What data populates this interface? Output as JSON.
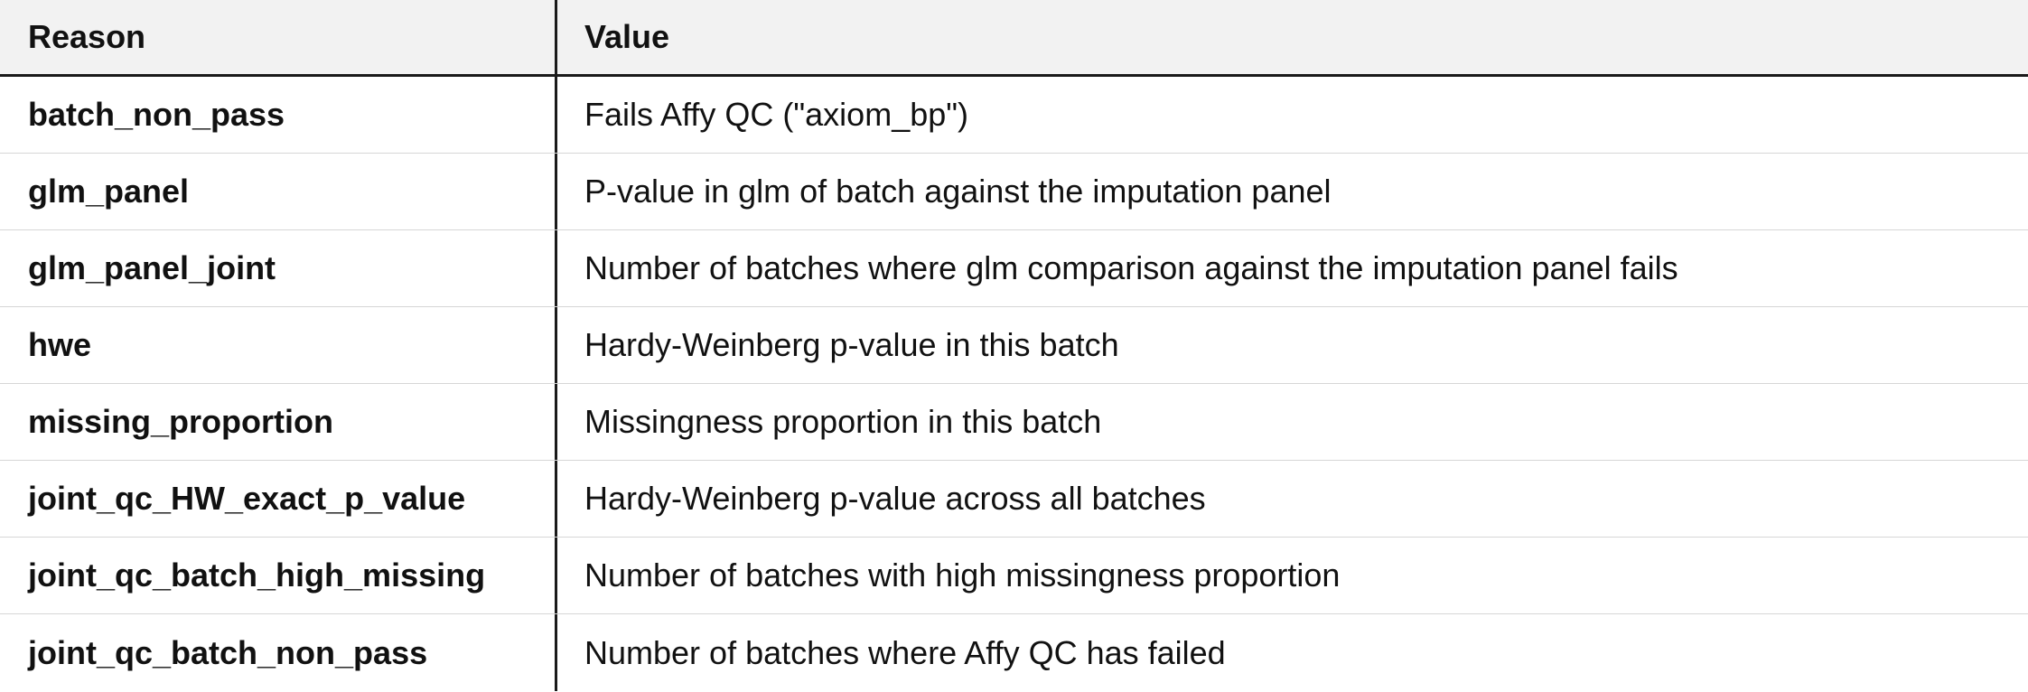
{
  "table": {
    "headers": {
      "reason": "Reason",
      "value": "Value"
    },
    "rows": [
      {
        "reason": "batch_non_pass",
        "value": "Fails Affy QC (\"axiom_bp\")"
      },
      {
        "reason": "glm_panel",
        "value": "P-value in glm of batch against the imputation panel"
      },
      {
        "reason": "glm_panel_joint",
        "value": "Number of batches where glm comparison against the imputation panel fails"
      },
      {
        "reason": "hwe",
        "value": "Hardy-Weinberg p-value in this batch"
      },
      {
        "reason": "missing_proportion",
        "value": "Missingness proportion in this batch"
      },
      {
        "reason": "joint_qc_HW_exact_p_value",
        "value": "Hardy-Weinberg p-value across all batches"
      },
      {
        "reason": "joint_qc_batch_high_missing",
        "value": "Number of batches with high missingness proportion"
      },
      {
        "reason": "joint_qc_batch_non_pass",
        "value": "Number of batches where Affy QC has failed"
      }
    ]
  }
}
